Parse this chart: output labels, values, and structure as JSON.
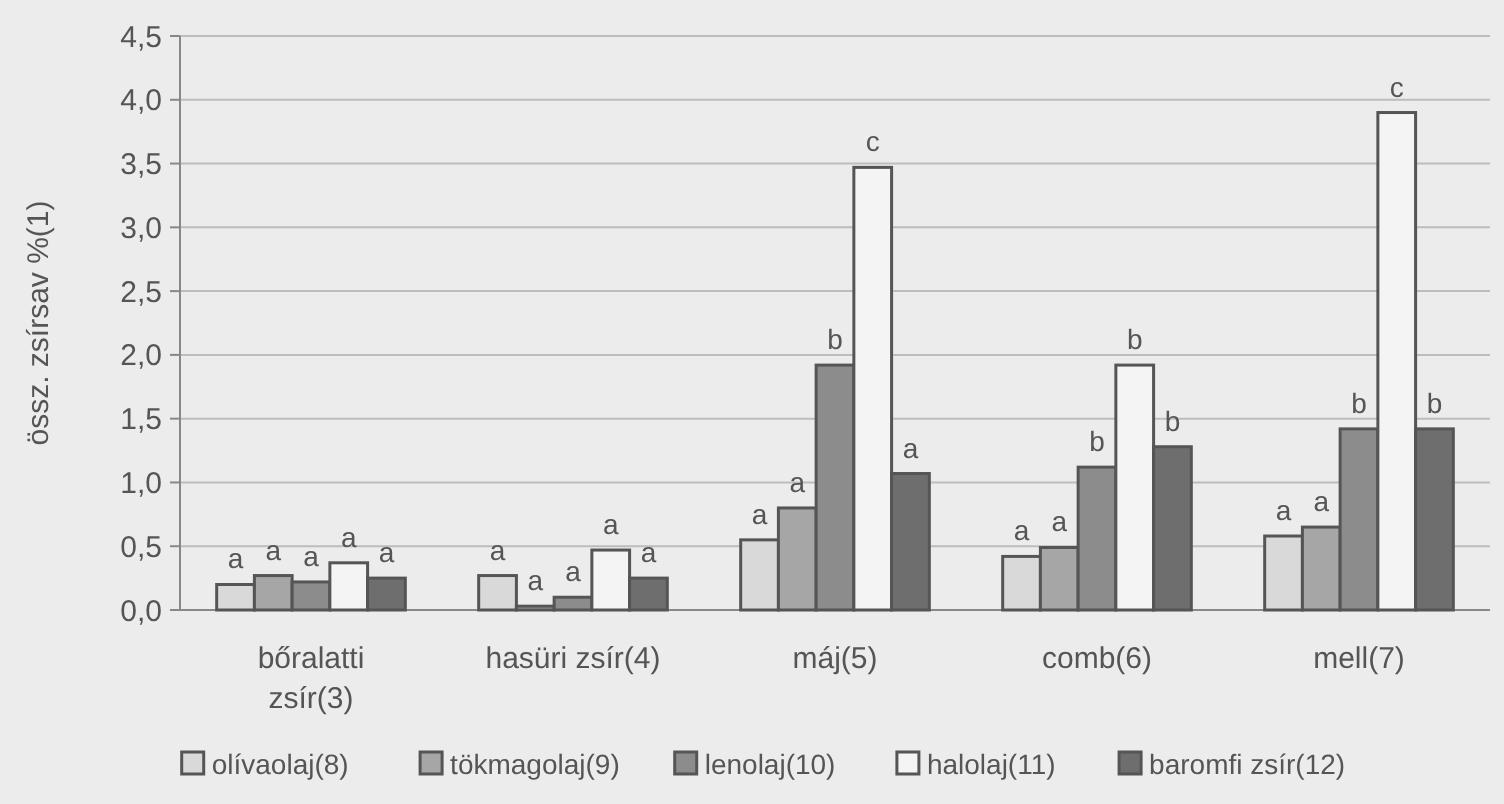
{
  "chart_data": {
    "type": "bar",
    "ylabel": "össz. zsírsav %(1)",
    "categories": [
      "bőralatti zsír(3)",
      "hasüri zsír(4)",
      "máj(5)",
      "comb(6)",
      "mell(7)"
    ],
    "series": [
      {
        "name": "olívaolaj(8)",
        "color": "#d9d9d9",
        "values": [
          0.2,
          0.27,
          0.55,
          0.42,
          0.58
        ],
        "value_labels": [
          "a",
          "a",
          "a",
          "a",
          "a"
        ]
      },
      {
        "name": "tökmagolaj(9)",
        "color": "#a6a6a6",
        "values": [
          0.27,
          0.03,
          0.8,
          0.49,
          0.65
        ],
        "value_labels": [
          "a",
          "a",
          "a",
          "a",
          "a"
        ]
      },
      {
        "name": "lenolaj(10)",
        "color": "#8c8c8c",
        "values": [
          0.22,
          0.1,
          1.92,
          1.12,
          1.42
        ],
        "value_labels": [
          "a",
          "a",
          "b",
          "b",
          "b"
        ]
      },
      {
        "name": "halolaj(11)",
        "color": "#f4f4f4",
        "values": [
          0.37,
          0.47,
          3.47,
          1.92,
          3.9
        ],
        "value_labels": [
          "a",
          "a",
          "c",
          "b",
          "c"
        ]
      },
      {
        "name": "baromfi zsír(12)",
        "color": "#6e6e6e",
        "values": [
          0.25,
          0.25,
          1.07,
          1.28,
          1.42
        ],
        "value_labels": [
          "a",
          "a",
          "a",
          "b",
          "b"
        ]
      }
    ],
    "ylim": [
      0,
      4.5
    ],
    "yticks": [
      {
        "value": 0,
        "label": "0,0"
      },
      {
        "value": 0.5,
        "label": "0,5"
      },
      {
        "value": 1,
        "label": "1,0"
      },
      {
        "value": 1.5,
        "label": "1,5"
      },
      {
        "value": 2,
        "label": "2,0"
      },
      {
        "value": 2.5,
        "label": "2,5"
      },
      {
        "value": 3,
        "label": "3,0"
      },
      {
        "value": 3.5,
        "label": "3,5"
      },
      {
        "value": 4,
        "label": "4,0"
      },
      {
        "value": 4.5,
        "label": "4,5"
      }
    ],
    "grid": "y",
    "legend": "bottom"
  }
}
